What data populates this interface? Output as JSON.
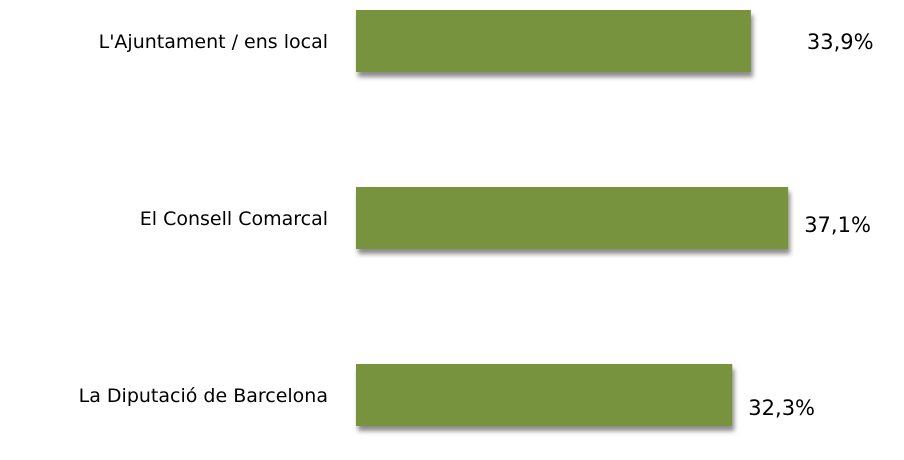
{
  "chart_data": {
    "type": "bar",
    "orientation": "horizontal",
    "categories": [
      "L'Ajuntament / ens local",
      "El Consell Comarcal",
      "La Diputació de Barcelona"
    ],
    "values": [
      33.9,
      37.1,
      32.3
    ],
    "value_labels": [
      "33,9%",
      "37,1%",
      "32,3%"
    ],
    "title": "",
    "xlabel": "",
    "ylabel": "",
    "grid": false,
    "legend": "none",
    "bar_color": "#77933c"
  }
}
